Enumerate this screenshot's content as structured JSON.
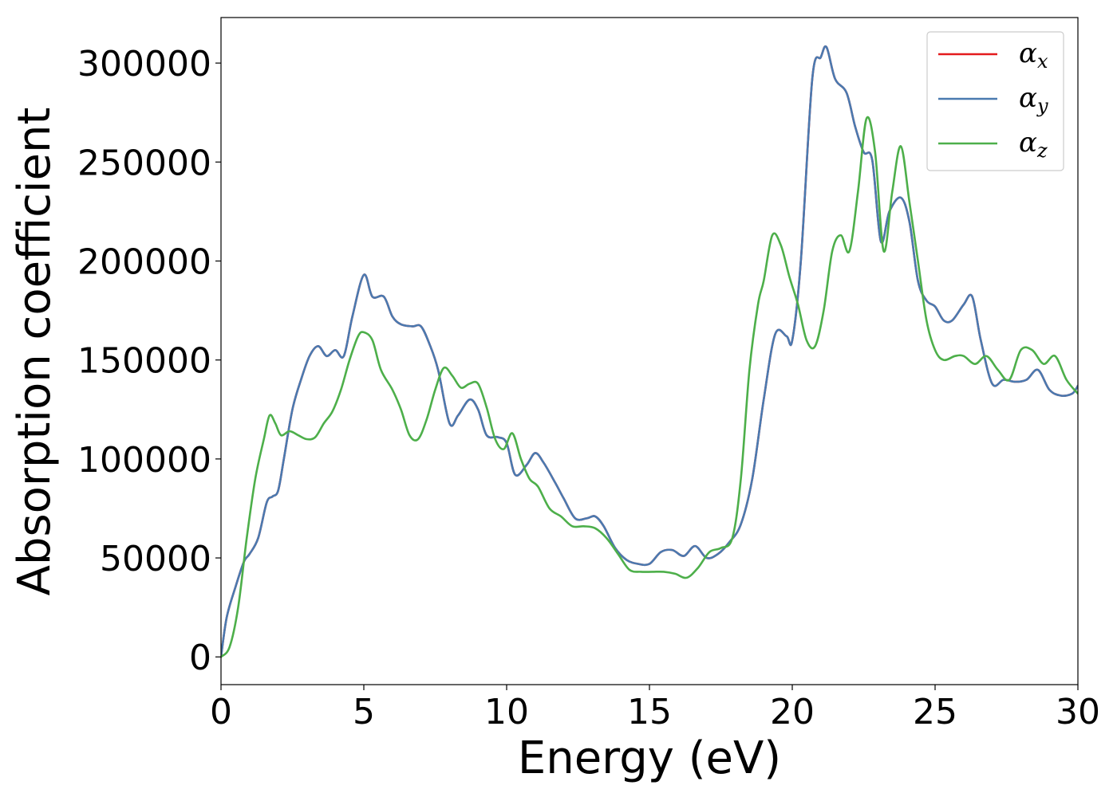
{
  "chart_data": {
    "type": "line",
    "xlabel": "Energy (eV)",
    "ylabel": "Absorption coefficient",
    "xlim": [
      0,
      30
    ],
    "ylim": [
      -14000,
      323000
    ],
    "xticks": [
      0,
      5,
      10,
      15,
      20,
      25,
      30
    ],
    "yticks": [
      0,
      50000,
      100000,
      150000,
      200000,
      250000,
      300000
    ],
    "xtick_labels": [
      "0",
      "5",
      "10",
      "15",
      "20",
      "25",
      "30"
    ],
    "ytick_labels": [
      "0",
      "50000",
      "100000",
      "150000",
      "200000",
      "250000",
      "300000"
    ],
    "grid": false,
    "legend_position": "top-right",
    "series": [
      {
        "name": "α_x",
        "legend_symbol": "α",
        "legend_subscript": "x",
        "color": "#e41a1c",
        "x": [
          0,
          0.2,
          0.5,
          0.8,
          1.0,
          1.3,
          1.6,
          1.8,
          2.0,
          2.2,
          2.5,
          2.8,
          3.1,
          3.4,
          3.7,
          4.0,
          4.3,
          4.6,
          5.0,
          5.3,
          5.7,
          6.0,
          6.3,
          6.7,
          7.0,
          7.3,
          7.6,
          8.0,
          8.3,
          8.7,
          9.0,
          9.3,
          9.7,
          10.0,
          10.3,
          10.7,
          11.0,
          11.3,
          11.7,
          12.0,
          12.4,
          12.8,
          13.1,
          13.4,
          13.8,
          14.2,
          14.6,
          15.0,
          15.4,
          15.8,
          16.2,
          16.6,
          17.0,
          17.4,
          17.8,
          18.2,
          18.6,
          19.0,
          19.4,
          19.8,
          20.0,
          20.3,
          20.7,
          21.0,
          21.2,
          21.5,
          21.9,
          22.2,
          22.5,
          22.8,
          23.1,
          23.4,
          23.8,
          24.1,
          24.4,
          24.7,
          25.0,
          25.3,
          25.6,
          26.0,
          26.3,
          26.6,
          27.0,
          27.4,
          27.8,
          28.2,
          28.6,
          29.0,
          29.4,
          29.8,
          30.0
        ],
        "y": [
          0,
          20000,
          35000,
          48000,
          52000,
          60000,
          78000,
          81000,
          84000,
          100000,
          125000,
          140000,
          152000,
          157000,
          152000,
          155000,
          152000,
          172000,
          193000,
          182000,
          182000,
          172000,
          168000,
          167000,
          167000,
          158000,
          145000,
          118000,
          122000,
          130000,
          125000,
          112000,
          111000,
          108000,
          92000,
          97000,
          103000,
          98000,
          88000,
          80000,
          70000,
          70000,
          71000,
          66000,
          55000,
          49000,
          47000,
          47000,
          53000,
          54000,
          51000,
          56000,
          50000,
          52000,
          58000,
          67000,
          90000,
          130000,
          163000,
          162000,
          160000,
          200000,
          292000,
          303000,
          308000,
          292000,
          285000,
          268000,
          255000,
          251000,
          210000,
          225000,
          232000,
          220000,
          190000,
          180000,
          177000,
          170000,
          170000,
          178000,
          182000,
          160000,
          138000,
          140000,
          139000,
          140000,
          145000,
          135000,
          132000,
          133000,
          137000
        ]
      },
      {
        "name": "α_y",
        "legend_symbol": "α",
        "legend_subscript": "y",
        "color": "#4a7ab0",
        "x": [
          0,
          0.2,
          0.5,
          0.8,
          1.0,
          1.3,
          1.6,
          1.8,
          2.0,
          2.2,
          2.5,
          2.8,
          3.1,
          3.4,
          3.7,
          4.0,
          4.3,
          4.6,
          5.0,
          5.3,
          5.7,
          6.0,
          6.3,
          6.7,
          7.0,
          7.3,
          7.6,
          8.0,
          8.3,
          8.7,
          9.0,
          9.3,
          9.7,
          10.0,
          10.3,
          10.7,
          11.0,
          11.3,
          11.7,
          12.0,
          12.4,
          12.8,
          13.1,
          13.4,
          13.8,
          14.2,
          14.6,
          15.0,
          15.4,
          15.8,
          16.2,
          16.6,
          17.0,
          17.4,
          17.8,
          18.2,
          18.6,
          19.0,
          19.4,
          19.8,
          20.0,
          20.3,
          20.7,
          21.0,
          21.2,
          21.5,
          21.9,
          22.2,
          22.5,
          22.8,
          23.1,
          23.4,
          23.8,
          24.1,
          24.4,
          24.7,
          25.0,
          25.3,
          25.6,
          26.0,
          26.3,
          26.6,
          27.0,
          27.4,
          27.8,
          28.2,
          28.6,
          29.0,
          29.4,
          29.8,
          30.0
        ],
        "y": [
          0,
          20000,
          35000,
          48000,
          52000,
          60000,
          78000,
          81000,
          84000,
          100000,
          125000,
          140000,
          152000,
          157000,
          152000,
          155000,
          152000,
          172000,
          193000,
          182000,
          182000,
          172000,
          168000,
          167000,
          167000,
          158000,
          145000,
          118000,
          122000,
          130000,
          125000,
          112000,
          111000,
          108000,
          92000,
          97000,
          103000,
          98000,
          88000,
          80000,
          70000,
          70000,
          71000,
          66000,
          55000,
          49000,
          47000,
          47000,
          53000,
          54000,
          51000,
          56000,
          50000,
          52000,
          58000,
          67000,
          90000,
          130000,
          163000,
          162000,
          160000,
          200000,
          292000,
          303000,
          308000,
          292000,
          285000,
          268000,
          255000,
          251000,
          210000,
          225000,
          232000,
          220000,
          190000,
          180000,
          177000,
          170000,
          170000,
          178000,
          182000,
          160000,
          138000,
          140000,
          139000,
          140000,
          145000,
          135000,
          132000,
          133000,
          137000
        ]
      },
      {
        "name": "α_z",
        "legend_symbol": "α",
        "legend_subscript": "z",
        "color": "#4daf4a",
        "x": [
          0,
          0.3,
          0.6,
          0.9,
          1.2,
          1.5,
          1.7,
          1.9,
          2.1,
          2.4,
          2.7,
          3.0,
          3.3,
          3.6,
          3.9,
          4.2,
          4.5,
          4.8,
          5.0,
          5.3,
          5.6,
          6.0,
          6.3,
          6.6,
          6.9,
          7.2,
          7.5,
          7.8,
          8.1,
          8.4,
          8.7,
          9.0,
          9.3,
          9.6,
          9.9,
          10.2,
          10.5,
          10.8,
          11.1,
          11.5,
          11.9,
          12.3,
          12.7,
          13.1,
          13.5,
          13.9,
          14.3,
          14.7,
          15.1,
          15.5,
          15.9,
          16.3,
          16.7,
          17.1,
          17.5,
          17.9,
          18.2,
          18.5,
          18.8,
          19.0,
          19.3,
          19.6,
          19.9,
          20.2,
          20.5,
          20.8,
          21.1,
          21.4,
          21.7,
          22.0,
          22.3,
          22.6,
          22.9,
          23.2,
          23.5,
          23.8,
          24.1,
          24.4,
          24.7,
          25.0,
          25.3,
          25.7,
          26.0,
          26.4,
          26.8,
          27.2,
          27.6,
          28.0,
          28.4,
          28.8,
          29.2,
          29.6,
          30.0
        ],
        "y": [
          0,
          5000,
          25000,
          60000,
          90000,
          110000,
          122000,
          118000,
          112000,
          114000,
          112000,
          110000,
          111000,
          118000,
          124000,
          135000,
          150000,
          162000,
          164000,
          160000,
          145000,
          135000,
          125000,
          112000,
          110000,
          120000,
          135000,
          146000,
          142000,
          136000,
          138000,
          138000,
          126000,
          110000,
          105000,
          113000,
          100000,
          90000,
          86000,
          75000,
          71000,
          66000,
          66000,
          65000,
          60000,
          52000,
          44000,
          43000,
          43000,
          43000,
          42000,
          40000,
          45000,
          53000,
          55000,
          60000,
          90000,
          145000,
          178000,
          190000,
          213000,
          208000,
          192000,
          178000,
          160000,
          157000,
          175000,
          205000,
          213000,
          205000,
          235000,
          272000,
          255000,
          205000,
          235000,
          258000,
          230000,
          200000,
          170000,
          155000,
          150000,
          152000,
          152000,
          148000,
          152000,
          145000,
          140000,
          155000,
          155000,
          148000,
          152000,
          140000,
          133000
        ]
      }
    ]
  }
}
